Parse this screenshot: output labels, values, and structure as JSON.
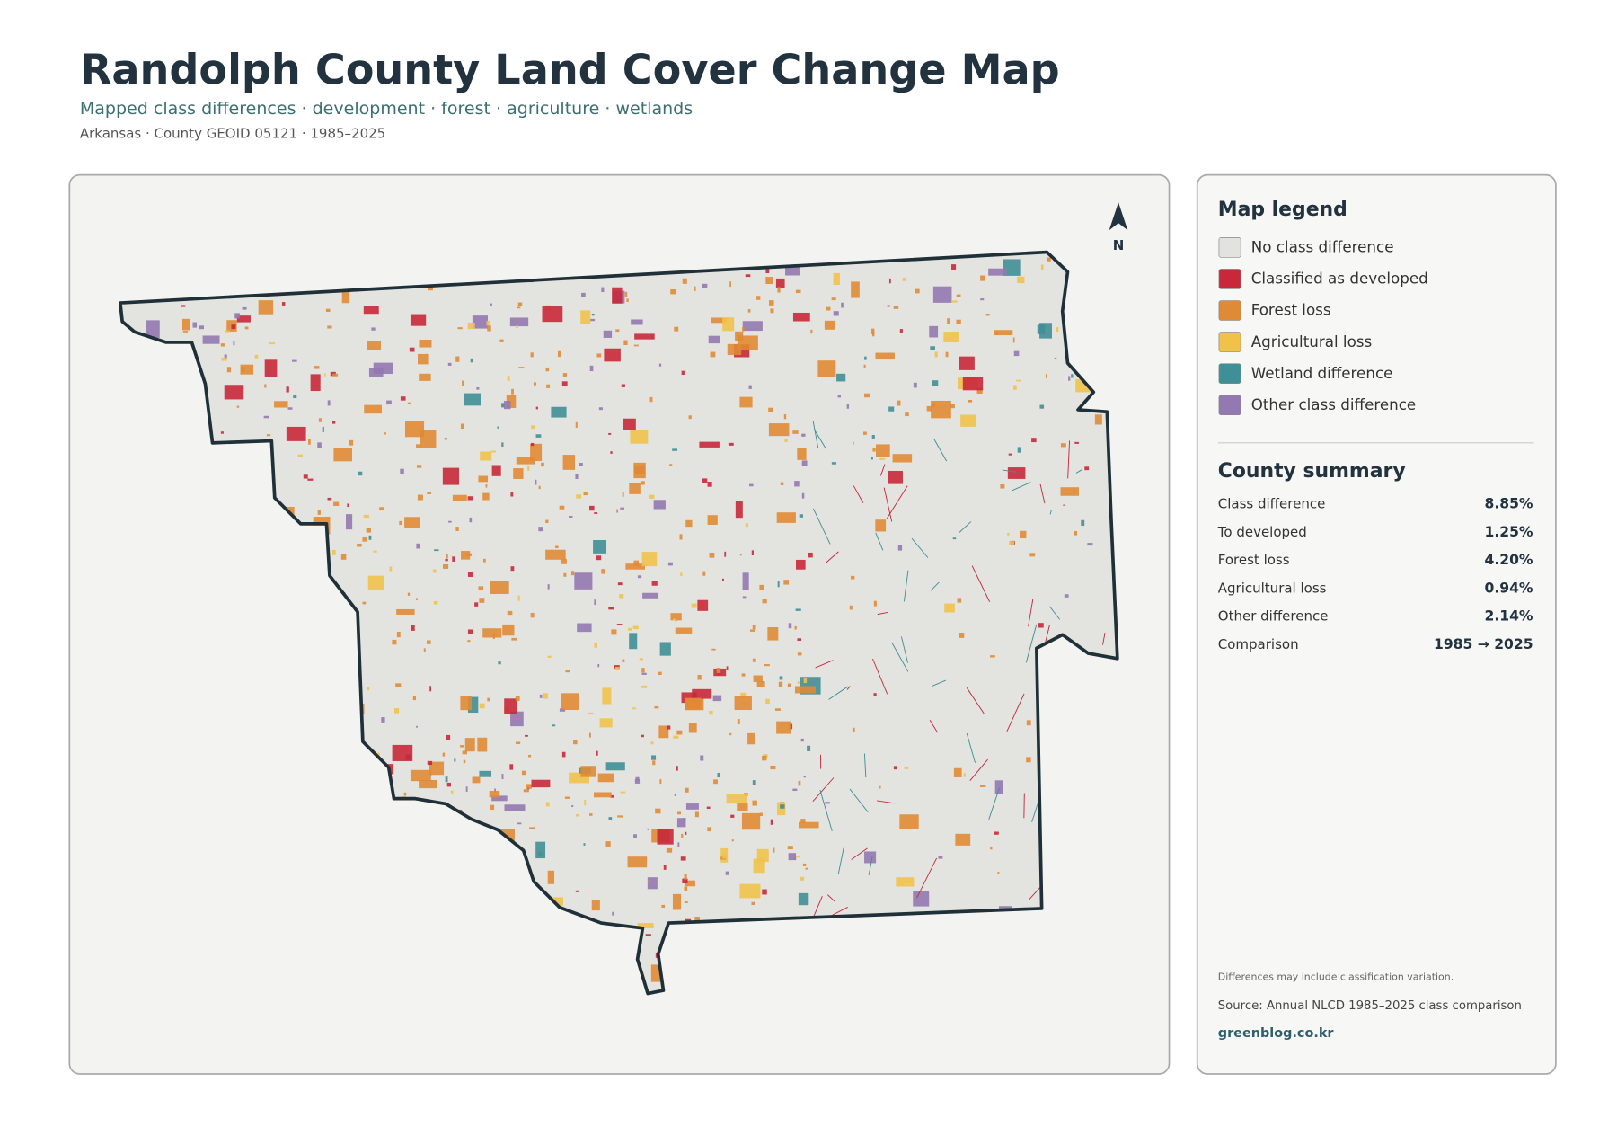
{
  "header": {
    "title": "Randolph County Land Cover Change Map",
    "subtitle": "Mapped class differences · development · forest · agriculture · wetlands",
    "meta": "Arkansas · County GEOID 05121 · 1985–2025"
  },
  "map": {
    "north_label": "N"
  },
  "legend": {
    "title": "Map legend",
    "items": [
      {
        "label": "No class difference",
        "color": "#e2e2df"
      },
      {
        "label": "Classified as developed",
        "color": "#c8283a"
      },
      {
        "label": "Forest loss",
        "color": "#e08a35"
      },
      {
        "label": "Agricultural loss",
        "color": "#f0c24a"
      },
      {
        "label": "Wetland difference",
        "color": "#3f8f96"
      },
      {
        "label": "Other class difference",
        "color": "#9478b0"
      }
    ]
  },
  "summary": {
    "title": "County summary",
    "rows": [
      [
        "Class difference",
        "8.85%"
      ],
      [
        "To developed",
        "1.25%"
      ],
      [
        "Forest loss",
        "4.20%"
      ],
      [
        "Agricultural loss",
        "0.94%"
      ],
      [
        "Other difference",
        "2.14%"
      ],
      [
        "Comparison",
        "1985 → 2025"
      ]
    ]
  },
  "footer": {
    "note": "Differences may include classification variation.",
    "source": "Source: Annual NLCD 1985–2025 class comparison",
    "site": "greenblog.co.kr"
  }
}
